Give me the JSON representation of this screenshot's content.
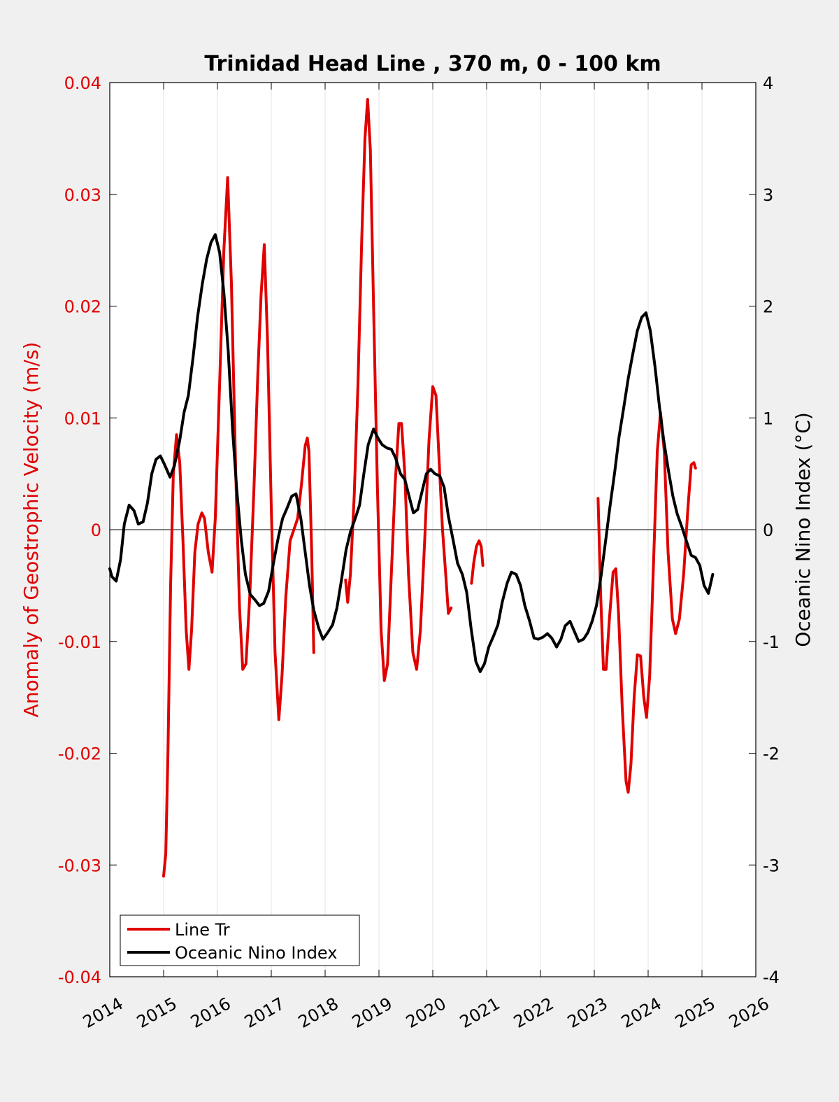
{
  "chart_data": {
    "type": "line",
    "title": "Trinidad Head Line , 370 m, 0 - 100 km",
    "ylabel_left": "Anomaly of Geostrophic Velocity (m/s)",
    "ylabel_right": "Oceanic Nino Index (°C)",
    "xlabel": "",
    "xlim": [
      2014,
      2026
    ],
    "ylim_left": [
      -0.04,
      0.04
    ],
    "ylim_right": [
      -4,
      4
    ],
    "x_ticks": [
      "2014",
      "2015",
      "2016",
      "2017",
      "2018",
      "2019",
      "2020",
      "2021",
      "2022",
      "2023",
      "2024",
      "2025",
      "2026"
    ],
    "y_left_ticks": [
      "-0.04",
      "-0.03",
      "-0.02",
      "-0.01",
      "0",
      "0.01",
      "0.02",
      "0.03",
      "0.04"
    ],
    "y_right_ticks": [
      "-4",
      "-3",
      "-2",
      "-1",
      "0",
      "1",
      "2",
      "3",
      "4"
    ],
    "grid": "vertical",
    "zero_line": true,
    "legend_position": "bottom-left",
    "colors": {
      "line_tr": "#e00000",
      "oni": "#000000",
      "left_axis": "#e00000"
    },
    "series": [
      {
        "name": "Line Tr",
        "axis": "left",
        "segments": [
          [
            [
              2015.0,
              -0.031
            ],
            [
              2015.04,
              -0.029
            ],
            [
              2015.08,
              -0.02
            ],
            [
              2015.13,
              -0.005
            ],
            [
              2015.18,
              0.005
            ],
            [
              2015.24,
              0.0085
            ],
            [
              2015.3,
              0.006
            ],
            [
              2015.36,
              -0.001
            ],
            [
              2015.42,
              -0.009
            ],
            [
              2015.47,
              -0.0125
            ],
            [
              2015.52,
              -0.009
            ],
            [
              2015.58,
              -0.002
            ],
            [
              2015.64,
              0.0005
            ],
            [
              2015.71,
              0.0015
            ],
            [
              2015.76,
              0.001
            ],
            [
              2015.83,
              -0.002
            ],
            [
              2015.9,
              -0.0038
            ],
            [
              2015.96,
              0.001
            ],
            [
              2016.04,
              0.013
            ],
            [
              2016.12,
              0.025
            ],
            [
              2016.19,
              0.0315
            ],
            [
              2016.26,
              0.022
            ],
            [
              2016.34,
              0.005
            ],
            [
              2016.41,
              -0.007
            ],
            [
              2016.47,
              -0.0125
            ],
            [
              2016.53,
              -0.012
            ],
            [
              2016.6,
              -0.006
            ],
            [
              2016.68,
              0.004
            ],
            [
              2016.75,
              0.014
            ],
            [
              2016.81,
              0.021
            ],
            [
              2016.87,
              0.0255
            ],
            [
              2016.93,
              0.017
            ],
            [
              2017.0,
              0.002
            ],
            [
              2017.07,
              -0.011
            ],
            [
              2017.14,
              -0.017
            ],
            [
              2017.2,
              -0.013
            ],
            [
              2017.27,
              -0.006
            ],
            [
              2017.35,
              -0.001
            ],
            [
              2017.42,
              0.0
            ],
            [
              2017.49,
              0.001
            ],
            [
              2017.56,
              0.004
            ],
            [
              2017.63,
              0.0075
            ],
            [
              2017.67,
              0.0082
            ],
            [
              2017.7,
              0.007
            ],
            [
              2017.75,
              -0.002
            ],
            [
              2017.79,
              -0.011
            ]
          ],
          [
            [
              2018.38,
              -0.0045
            ],
            [
              2018.42,
              -0.0065
            ],
            [
              2018.47,
              -0.004
            ],
            [
              2018.54,
              0.003
            ],
            [
              2018.61,
              0.013
            ],
            [
              2018.68,
              0.026
            ],
            [
              2018.74,
              0.035
            ],
            [
              2018.79,
              0.0385
            ],
            [
              2018.84,
              0.034
            ],
            [
              2018.9,
              0.02
            ],
            [
              2018.97,
              0.004
            ],
            [
              2019.04,
              -0.009
            ],
            [
              2019.1,
              -0.0135
            ],
            [
              2019.16,
              -0.012
            ],
            [
              2019.23,
              -0.004
            ],
            [
              2019.3,
              0.004
            ],
            [
              2019.37,
              0.0095
            ],
            [
              2019.42,
              0.0095
            ],
            [
              2019.48,
              0.005
            ],
            [
              2019.55,
              -0.004
            ],
            [
              2019.63,
              -0.011
            ],
            [
              2019.7,
              -0.0125
            ],
            [
              2019.77,
              -0.009
            ],
            [
              2019.85,
              -0.001
            ],
            [
              2019.93,
              0.008
            ],
            [
              2020.0,
              0.0128
            ],
            [
              2020.06,
              0.012
            ],
            [
              2020.12,
              0.006
            ],
            [
              2020.18,
              0.0
            ],
            [
              2020.24,
              -0.004
            ],
            [
              2020.29,
              -0.0075
            ],
            [
              2020.34,
              -0.007
            ]
          ],
          [
            [
              2020.72,
              -0.0048
            ],
            [
              2020.76,
              -0.003
            ],
            [
              2020.81,
              -0.0015
            ],
            [
              2020.86,
              -0.001
            ],
            [
              2020.9,
              -0.0015
            ],
            [
              2020.93,
              -0.0032
            ]
          ],
          [
            [
              2023.07,
              0.0028
            ],
            [
              2023.12,
              -0.006
            ],
            [
              2023.17,
              -0.0125
            ],
            [
              2023.22,
              -0.0125
            ],
            [
              2023.28,
              -0.008
            ],
            [
              2023.35,
              -0.0038
            ],
            [
              2023.4,
              -0.0035
            ],
            [
              2023.45,
              -0.0075
            ],
            [
              2023.52,
              -0.016
            ],
            [
              2023.59,
              -0.0225
            ],
            [
              2023.63,
              -0.0235
            ],
            [
              2023.68,
              -0.021
            ],
            [
              2023.74,
              -0.015
            ],
            [
              2023.8,
              -0.0112
            ],
            [
              2023.86,
              -0.0113
            ],
            [
              2023.92,
              -0.015
            ],
            [
              2023.97,
              -0.0168
            ],
            [
              2024.03,
              -0.013
            ],
            [
              2024.1,
              -0.003
            ],
            [
              2024.17,
              0.007
            ],
            [
              2024.23,
              0.0105
            ],
            [
              2024.3,
              0.007
            ],
            [
              2024.37,
              -0.002
            ],
            [
              2024.45,
              -0.008
            ],
            [
              2024.51,
              -0.0093
            ],
            [
              2024.58,
              -0.008
            ],
            [
              2024.66,
              -0.004
            ],
            [
              2024.74,
              0.002
            ],
            [
              2024.8,
              0.0058
            ],
            [
              2024.85,
              0.006
            ],
            [
              2024.88,
              0.0055
            ]
          ]
        ]
      },
      {
        "name": "Oceanic Nino Index",
        "axis": "right",
        "segments": [
          [
            [
              2014.0,
              -0.35
            ],
            [
              2014.04,
              -0.42
            ],
            [
              2014.12,
              -0.46
            ],
            [
              2014.2,
              -0.27
            ],
            [
              2014.27,
              0.05
            ],
            [
              2014.36,
              0.22
            ],
            [
              2014.45,
              0.17
            ],
            [
              2014.53,
              0.05
            ],
            [
              2014.62,
              0.07
            ],
            [
              2014.7,
              0.24
            ],
            [
              2014.78,
              0.5
            ],
            [
              2014.86,
              0.63
            ],
            [
              2014.94,
              0.66
            ],
            [
              2015.02,
              0.58
            ],
            [
              2015.12,
              0.47
            ],
            [
              2015.2,
              0.57
            ],
            [
              2015.3,
              0.8
            ],
            [
              2015.38,
              1.05
            ],
            [
              2015.46,
              1.2
            ],
            [
              2015.55,
              1.55
            ],
            [
              2015.63,
              1.9
            ],
            [
              2015.72,
              2.2
            ],
            [
              2015.8,
              2.42
            ],
            [
              2015.88,
              2.57
            ],
            [
              2015.96,
              2.64
            ],
            [
              2016.04,
              2.48
            ],
            [
              2016.12,
              2.12
            ],
            [
              2016.2,
              1.6
            ],
            [
              2016.28,
              0.9
            ],
            [
              2016.36,
              0.35
            ],
            [
              2016.44,
              -0.08
            ],
            [
              2016.52,
              -0.4
            ],
            [
              2016.61,
              -0.58
            ],
            [
              2016.7,
              -0.63
            ],
            [
              2016.78,
              -0.68
            ],
            [
              2016.86,
              -0.66
            ],
            [
              2016.95,
              -0.55
            ],
            [
              2017.04,
              -0.3
            ],
            [
              2017.13,
              -0.07
            ],
            [
              2017.21,
              0.1
            ],
            [
              2017.3,
              0.2
            ],
            [
              2017.38,
              0.3
            ],
            [
              2017.46,
              0.32
            ],
            [
              2017.55,
              0.1
            ],
            [
              2017.63,
              -0.2
            ],
            [
              2017.71,
              -0.5
            ],
            [
              2017.79,
              -0.72
            ],
            [
              2017.88,
              -0.88
            ],
            [
              2017.96,
              -0.98
            ],
            [
              2018.05,
              -0.92
            ],
            [
              2018.14,
              -0.85
            ],
            [
              2018.22,
              -0.7
            ],
            [
              2018.31,
              -0.43
            ],
            [
              2018.39,
              -0.18
            ],
            [
              2018.47,
              -0.02
            ],
            [
              2018.56,
              0.1
            ],
            [
              2018.64,
              0.22
            ],
            [
              2018.72,
              0.5
            ],
            [
              2018.8,
              0.76
            ],
            [
              2018.9,
              0.9
            ],
            [
              2018.98,
              0.82
            ],
            [
              2019.06,
              0.76
            ],
            [
              2019.15,
              0.73
            ],
            [
              2019.23,
              0.72
            ],
            [
              2019.31,
              0.64
            ],
            [
              2019.4,
              0.5
            ],
            [
              2019.48,
              0.45
            ],
            [
              2019.56,
              0.3
            ],
            [
              2019.64,
              0.15
            ],
            [
              2019.72,
              0.18
            ],
            [
              2019.8,
              0.34
            ],
            [
              2019.88,
              0.5
            ],
            [
              2019.96,
              0.54
            ],
            [
              2020.04,
              0.5
            ],
            [
              2020.13,
              0.48
            ],
            [
              2020.21,
              0.38
            ],
            [
              2020.29,
              0.12
            ],
            [
              2020.38,
              -0.1
            ],
            [
              2020.46,
              -0.3
            ],
            [
              2020.55,
              -0.4
            ],
            [
              2020.63,
              -0.56
            ],
            [
              2020.71,
              -0.88
            ],
            [
              2020.8,
              -1.18
            ],
            [
              2020.88,
              -1.27
            ],
            [
              2020.96,
              -1.2
            ],
            [
              2021.04,
              -1.05
            ],
            [
              2021.13,
              -0.95
            ],
            [
              2021.21,
              -0.85
            ],
            [
              2021.29,
              -0.65
            ],
            [
              2021.38,
              -0.48
            ],
            [
              2021.46,
              -0.38
            ],
            [
              2021.55,
              -0.4
            ],
            [
              2021.63,
              -0.5
            ],
            [
              2021.71,
              -0.68
            ],
            [
              2021.8,
              -0.82
            ],
            [
              2021.88,
              -0.97
            ],
            [
              2021.96,
              -0.98
            ],
            [
              2022.05,
              -0.96
            ],
            [
              2022.13,
              -0.93
            ],
            [
              2022.21,
              -0.97
            ],
            [
              2022.3,
              -1.05
            ],
            [
              2022.38,
              -0.98
            ],
            [
              2022.46,
              -0.86
            ],
            [
              2022.55,
              -0.82
            ],
            [
              2022.63,
              -0.91
            ],
            [
              2022.71,
              -1.0
            ],
            [
              2022.8,
              -0.98
            ],
            [
              2022.88,
              -0.92
            ],
            [
              2022.96,
              -0.82
            ],
            [
              2023.04,
              -0.68
            ],
            [
              2023.13,
              -0.4
            ],
            [
              2023.21,
              -0.1
            ],
            [
              2023.29,
              0.2
            ],
            [
              2023.38,
              0.52
            ],
            [
              2023.46,
              0.83
            ],
            [
              2023.55,
              1.1
            ],
            [
              2023.63,
              1.35
            ],
            [
              2023.71,
              1.56
            ],
            [
              2023.8,
              1.78
            ],
            [
              2023.88,
              1.9
            ],
            [
              2023.96,
              1.94
            ],
            [
              2024.04,
              1.78
            ],
            [
              2024.13,
              1.45
            ],
            [
              2024.21,
              1.1
            ],
            [
              2024.29,
              0.8
            ],
            [
              2024.38,
              0.52
            ],
            [
              2024.46,
              0.3
            ],
            [
              2024.54,
              0.14
            ],
            [
              2024.63,
              0.02
            ],
            [
              2024.71,
              -0.1
            ],
            [
              2024.8,
              -0.23
            ],
            [
              2024.88,
              -0.25
            ],
            [
              2024.96,
              -0.32
            ],
            [
              2025.04,
              -0.5
            ],
            [
              2025.12,
              -0.57
            ],
            [
              2025.2,
              -0.4
            ]
          ]
        ]
      }
    ]
  }
}
